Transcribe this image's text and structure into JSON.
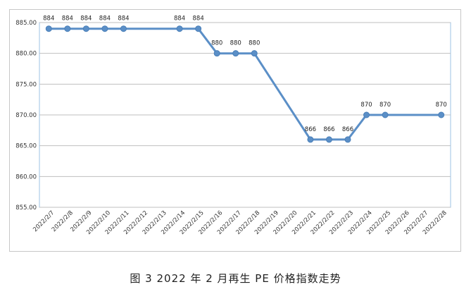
{
  "caption": "图 3  2022 年 2 月再生 PE 价格指数走势",
  "chart_data": {
    "type": "line",
    "categories": [
      "2022/2/7",
      "2022/2/8",
      "2022/2/9",
      "2022/2/10",
      "2022/2/11",
      "2022/2/12",
      "2022/2/13",
      "2022/2/14",
      "2022/2/15",
      "2022/2/16",
      "2022/2/17",
      "2022/2/18",
      "2022/2/19",
      "2022/2/20",
      "2022/2/21",
      "2022/2/22",
      "2022/2/23",
      "2022/2/24",
      "2022/2/25",
      "2022/2/26",
      "2022/2/27",
      "2022/2/28"
    ],
    "series": [
      {
        "values": [
          884,
          884,
          884,
          884,
          884,
          null,
          null,
          884,
          884,
          880,
          880,
          880,
          null,
          null,
          866,
          866,
          866,
          870,
          870,
          null,
          null,
          870
        ],
        "data_labels": [
          "884",
          "884",
          "884",
          "884",
          "884",
          "",
          "",
          "884",
          "884",
          "880",
          "880",
          "880",
          "",
          "",
          "866",
          "866",
          "866",
          "870",
          "870",
          "",
          "",
          "870"
        ]
      }
    ],
    "ylim": [
      855,
      885
    ],
    "yticks": [
      "855.00",
      "860.00",
      "865.00",
      "870.00",
      "875.00",
      "880.00",
      "885.00"
    ],
    "ytick_values": [
      855,
      860,
      865,
      870,
      875,
      880,
      885
    ],
    "title": "",
    "xlabel": "",
    "ylabel": "",
    "grid": true,
    "connect_gaps": true,
    "line_color": "#5b8fc7",
    "marker_color": "#5b8fc7",
    "grid_color": "#bfbfbf"
  }
}
